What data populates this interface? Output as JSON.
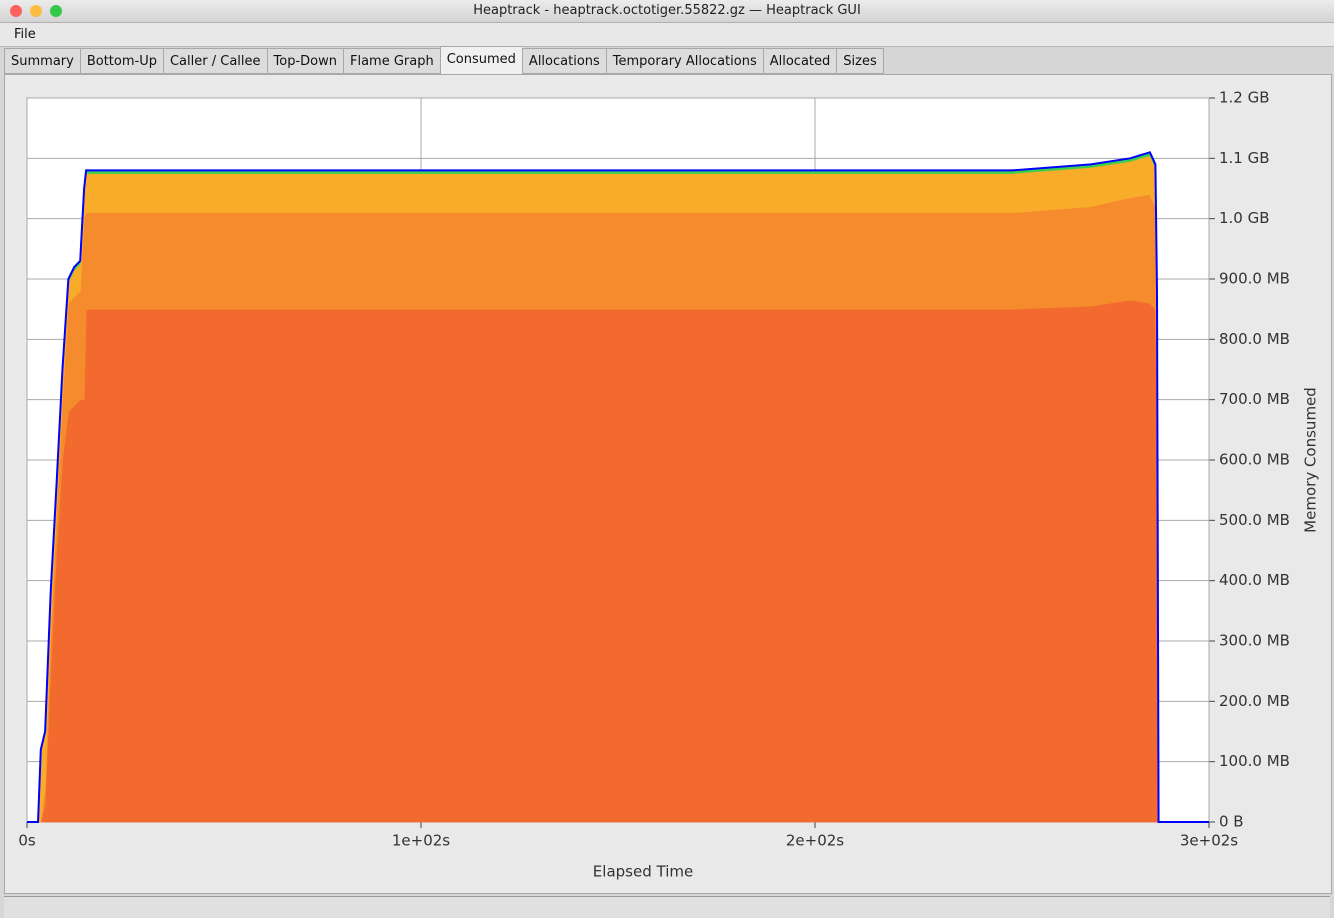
{
  "window": {
    "title": "Heaptrack - heaptrack.octotiger.55822.gz — Heaptrack GUI"
  },
  "menu": [
    "File"
  ],
  "tabs": [
    {
      "label": "Summary"
    },
    {
      "label": "Bottom-Up"
    },
    {
      "label": "Caller / Callee"
    },
    {
      "label": "Top-Down"
    },
    {
      "label": "Flame Graph"
    },
    {
      "label": "Consumed",
      "selected": true
    },
    {
      "label": "Allocations"
    },
    {
      "label": "Temporary Allocations"
    },
    {
      "label": "Allocated"
    },
    {
      "label": "Sizes"
    }
  ],
  "chart_data": {
    "type": "stacked_area",
    "x_label": "Elapsed Time",
    "y_label": "Memory Consumed",
    "xlim": [
      0,
      300
    ],
    "xticks": [
      {
        "value": 0,
        "label": "0s"
      },
      {
        "value": 100,
        "label": "1e+02s"
      },
      {
        "value": 200,
        "label": "2e+02s"
      },
      {
        "value": 300,
        "label": "3e+02s"
      }
    ],
    "ylim": [
      0,
      1200000000
    ],
    "yticks": [
      {
        "value": 0,
        "label": "0 B"
      },
      {
        "value": 100000000,
        "label": "100.0 MB"
      },
      {
        "value": 200000000,
        "label": "200.0 MB"
      },
      {
        "value": 300000000,
        "label": "300.0 MB"
      },
      {
        "value": 400000000,
        "label": "400.0 MB"
      },
      {
        "value": 500000000,
        "label": "500.0 MB"
      },
      {
        "value": 600000000,
        "label": "600.0 MB"
      },
      {
        "value": 700000000,
        "label": "700.0 MB"
      },
      {
        "value": 800000000,
        "label": "800.0 MB"
      },
      {
        "value": 900000000,
        "label": "900.0 MB"
      },
      {
        "value": 1000000000,
        "label": "1.0 GB"
      },
      {
        "value": 1100000000,
        "label": "1.1 GB"
      },
      {
        "value": 1200000000,
        "label": "1.2 GB"
      }
    ],
    "grid": true,
    "outline_color": "#0000ff",
    "x": [
      0,
      2.8,
      3.5,
      4.6,
      6,
      7.5,
      9,
      10.5,
      12,
      13.5,
      14.5,
      15,
      50,
      100,
      150,
      200,
      250,
      270,
      280,
      285,
      286.4,
      286.8,
      287.2,
      300
    ],
    "series": [
      {
        "color": "#f26a2e",
        "values": [
          0,
          0,
          0,
          30000000,
          250000000,
          450000000,
          600000000,
          680000000,
          690000000,
          700000000,
          700000000,
          850000000,
          850000000,
          850000000,
          850000000,
          850000000,
          850000000,
          855000000,
          865000000,
          860000000,
          850000000,
          700000000,
          0,
          0
        ]
      },
      {
        "color": "#f68b2d",
        "values": [
          0,
          0,
          0,
          30000000,
          60000000,
          60000000,
          100000000,
          180000000,
          180000000,
          180000000,
          300000000,
          160000000,
          160000000,
          160000000,
          160000000,
          160000000,
          160000000,
          165000000,
          170000000,
          180000000,
          170000000,
          0,
          0,
          0
        ]
      },
      {
        "color": "#f9ac2a",
        "values": [
          0,
          0,
          120000000,
          90000000,
          70000000,
          50000000,
          50000000,
          35000000,
          45000000,
          45000000,
          45000000,
          65000000,
          65000000,
          65000000,
          65000000,
          65000000,
          65000000,
          65000000,
          60000000,
          65000000,
          65000000,
          175000000,
          0,
          0
        ]
      },
      {
        "color": "#3ccf4e",
        "values": [
          0,
          0,
          0,
          0,
          0,
          0,
          0,
          5000000,
          5000000,
          5000000,
          5000000,
          5000000,
          5000000,
          5000000,
          5000000,
          5000000,
          5000000,
          5000000,
          5000000,
          5000000,
          5000000,
          5000000,
          0,
          0
        ]
      }
    ]
  }
}
